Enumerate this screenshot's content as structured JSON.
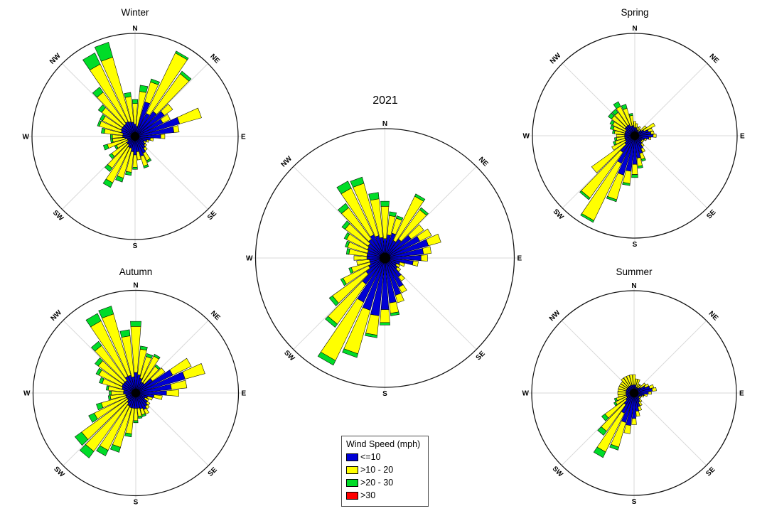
{
  "colors": {
    "blue": "#0000D5",
    "yellow": "#FFFF00",
    "green": "#00DC28",
    "red": "#FF0000",
    "grid": "#d9d9d9",
    "outline": "#111111"
  },
  "compass_labels": [
    "N",
    "NE",
    "E",
    "SE",
    "S",
    "SW",
    "W",
    "NW"
  ],
  "legend": {
    "title": "Wind Speed (mph)",
    "items": [
      {
        "label": "<=10",
        "color": "#0000D5"
      },
      {
        "label": ">10 - 20",
        "color": "#FFFF00"
      },
      {
        "label": ">20 - 30",
        "color": "#00DC28"
      },
      {
        "label": ">30",
        "color": "#FF0000"
      }
    ]
  },
  "wind_directions_deg": [
    0,
    10,
    20,
    30,
    40,
    50,
    60,
    70,
    80,
    90,
    100,
    110,
    120,
    130,
    140,
    150,
    160,
    170,
    180,
    190,
    200,
    210,
    220,
    230,
    240,
    250,
    260,
    270,
    280,
    290,
    300,
    310,
    320,
    330,
    340,
    350
  ],
  "value_scale": "percent of outer circle radius (radial axis unlabeled in figure)",
  "chart_data": [
    {
      "type": "windrose",
      "title": "Winter",
      "position": "top-left",
      "series": [
        {
          "name": "<=10",
          "color": "#0000D5",
          "values": [
            12,
            10,
            35,
            25,
            30,
            35,
            30,
            45,
            38,
            25,
            15,
            12,
            10,
            12,
            14,
            18,
            20,
            15,
            18,
            15,
            12,
            12,
            10,
            10,
            8,
            8,
            10,
            12,
            12,
            14,
            15,
            15,
            15,
            16,
            15,
            14
          ]
        },
        {
          "name": ">10 - 20",
          "color": "#FFFF00",
          "values": [
            20,
            34,
            20,
            65,
            45,
            10,
            8,
            22,
            5,
            4,
            3,
            2,
            2,
            2,
            3,
            8,
            10,
            8,
            12,
            20,
            30,
            38,
            28,
            18,
            12,
            20,
            12,
            10,
            18,
            22,
            20,
            25,
            38,
            62,
            65,
            25
          ]
        },
        {
          "name": ">20 - 30",
          "color": "#00DC28",
          "values": [
            4,
            6,
            3,
            2,
            3,
            0,
            0,
            0,
            0,
            0,
            0,
            0,
            0,
            0,
            0,
            2,
            2,
            0,
            2,
            3,
            4,
            5,
            4,
            3,
            2,
            4,
            2,
            2,
            3,
            2,
            3,
            4,
            6,
            12,
            15,
            4
          ]
        },
        {
          "name": ">30",
          "color": "#FF0000",
          "values": [
            0,
            0,
            0,
            0,
            0,
            0,
            0,
            0,
            0,
            0,
            0,
            0,
            0,
            0,
            0,
            0,
            0,
            0,
            0,
            0,
            0,
            0,
            0,
            0,
            0,
            0,
            0,
            0,
            0,
            0,
            0,
            0,
            0,
            0,
            0,
            0
          ]
        }
      ]
    },
    {
      "type": "windrose",
      "title": "Spring",
      "position": "top-right",
      "series": [
        {
          "name": "<=10",
          "color": "#0000D5",
          "values": [
            8,
            8,
            6,
            6,
            5,
            8,
            10,
            14,
            16,
            18,
            14,
            10,
            8,
            8,
            10,
            14,
            18,
            22,
            28,
            35,
            40,
            30,
            20,
            12,
            10,
            10,
            10,
            10,
            10,
            10,
            10,
            12,
            12,
            12,
            10,
            10
          ]
        },
        {
          "name": ">10 - 20",
          "color": "#FFFF00",
          "values": [
            6,
            4,
            3,
            4,
            3,
            6,
            12,
            4,
            3,
            3,
            2,
            2,
            2,
            2,
            3,
            4,
            6,
            8,
            10,
            12,
            25,
            62,
            55,
            40,
            15,
            10,
            8,
            8,
            10,
            12,
            14,
            16,
            16,
            20,
            18,
            10
          ]
        },
        {
          "name": ">20 - 30",
          "color": "#00DC28",
          "values": [
            0,
            0,
            0,
            0,
            0,
            0,
            0,
            0,
            0,
            0,
            0,
            0,
            0,
            0,
            0,
            0,
            2,
            2,
            3,
            2,
            2,
            2,
            2,
            0,
            0,
            2,
            2,
            0,
            2,
            3,
            3,
            4,
            4,
            5,
            4,
            2
          ]
        },
        {
          "name": ">30",
          "color": "#FF0000",
          "values": [
            0,
            0,
            0,
            0,
            0,
            0,
            0,
            0,
            0,
            0,
            0,
            0,
            0,
            0,
            0,
            0,
            0,
            0,
            0,
            0,
            0,
            0,
            0,
            0,
            0,
            0,
            0,
            0,
            0,
            0,
            0,
            0,
            0,
            0,
            0,
            0
          ]
        }
      ]
    },
    {
      "type": "windrose",
      "title": "2021",
      "position": "center",
      "series": [
        {
          "name": "<=10",
          "color": "#0000D5",
          "values": [
            15,
            18,
            20,
            15,
            18,
            25,
            30,
            35,
            30,
            28,
            22,
            12,
            10,
            12,
            18,
            25,
            30,
            35,
            40,
            45,
            42,
            38,
            25,
            18,
            14,
            12,
            12,
            14,
            14,
            14,
            15,
            16,
            18,
            20,
            18,
            16
          ]
        },
        {
          "name": ">10 - 20",
          "color": "#FFFF00",
          "values": [
            25,
            15,
            12,
            38,
            28,
            12,
            10,
            10,
            6,
            5,
            4,
            4,
            3,
            3,
            4,
            5,
            6,
            8,
            10,
            15,
            35,
            50,
            38,
            32,
            22,
            15,
            10,
            10,
            14,
            16,
            18,
            22,
            30,
            40,
            42,
            30
          ]
        },
        {
          "name": ">20 - 30",
          "color": "#00DC28",
          "values": [
            4,
            3,
            2,
            2,
            2,
            0,
            0,
            0,
            0,
            0,
            0,
            0,
            0,
            0,
            0,
            0,
            0,
            2,
            2,
            2,
            3,
            4,
            3,
            3,
            2,
            2,
            0,
            0,
            2,
            2,
            2,
            3,
            4,
            6,
            5,
            5
          ]
        },
        {
          "name": ">30",
          "color": "#FF0000",
          "values": [
            0,
            0,
            0,
            0,
            0,
            0,
            0,
            0,
            0,
            0,
            0,
            0,
            0,
            0,
            0,
            0,
            0,
            0,
            0,
            0,
            0,
            0,
            0,
            0,
            0,
            0,
            0,
            0,
            0,
            0,
            0,
            0,
            0,
            0,
            0,
            0
          ]
        }
      ]
    },
    {
      "type": "windrose",
      "title": "Autumn",
      "position": "bottom-left",
      "series": [
        {
          "name": "<=10",
          "color": "#0000D5",
          "values": [
            20,
            18,
            15,
            12,
            12,
            20,
            40,
            50,
            35,
            30,
            18,
            12,
            10,
            14,
            16,
            18,
            16,
            15,
            15,
            15,
            15,
            14,
            12,
            10,
            10,
            10,
            10,
            12,
            12,
            14,
            15,
            15,
            15,
            18,
            18,
            16
          ]
        },
        {
          "name": ">10 - 20",
          "color": "#FFFF00",
          "values": [
            45,
            25,
            22,
            28,
            20,
            15,
            20,
            20,
            15,
            12,
            8,
            5,
            4,
            3,
            3,
            5,
            6,
            8,
            12,
            25,
            40,
            48,
            58,
            55,
            35,
            25,
            15,
            12,
            15,
            20,
            25,
            30,
            42,
            60,
            62,
            40
          ]
        },
        {
          "name": ">20 - 30",
          "color": "#00DC28",
          "values": [
            5,
            3,
            3,
            2,
            2,
            0,
            0,
            0,
            0,
            0,
            0,
            0,
            0,
            0,
            0,
            0,
            2,
            2,
            2,
            3,
            5,
            6,
            8,
            8,
            6,
            5,
            2,
            2,
            2,
            3,
            3,
            4,
            5,
            8,
            8,
            6
          ]
        },
        {
          "name": ">30",
          "color": "#FF0000",
          "values": [
            0,
            0,
            0,
            0,
            0,
            0,
            0,
            0,
            0,
            0,
            0,
            0,
            0,
            0,
            0,
            0,
            0,
            0,
            0,
            0,
            0,
            0,
            0,
            0,
            0,
            0,
            0,
            0,
            0,
            0,
            0,
            0,
            0,
            0,
            0,
            0
          ]
        }
      ]
    },
    {
      "type": "windrose",
      "title": "Summer",
      "position": "bottom-right",
      "series": [
        {
          "name": "<=10",
          "color": "#0000D5",
          "values": [
            8,
            8,
            6,
            6,
            6,
            8,
            12,
            16,
            18,
            14,
            10,
            8,
            6,
            6,
            8,
            10,
            14,
            18,
            25,
            32,
            30,
            22,
            14,
            10,
            8,
            8,
            8,
            8,
            8,
            8,
            8,
            8,
            8,
            8,
            8,
            8
          ]
        },
        {
          "name": ">10 - 20",
          "color": "#FFFF00",
          "values": [
            10,
            6,
            8,
            4,
            4,
            6,
            4,
            4,
            4,
            3,
            3,
            2,
            2,
            2,
            3,
            4,
            4,
            5,
            6,
            8,
            25,
            42,
            32,
            25,
            12,
            10,
            8,
            8,
            8,
            8,
            8,
            8,
            10,
            10,
            10,
            10
          ]
        },
        {
          "name": ">20 - 30",
          "color": "#00DC28",
          "values": [
            0,
            0,
            0,
            0,
            0,
            0,
            0,
            0,
            0,
            0,
            0,
            0,
            0,
            0,
            0,
            0,
            0,
            0,
            0,
            0,
            3,
            6,
            5,
            4,
            2,
            2,
            0,
            0,
            0,
            0,
            0,
            0,
            0,
            0,
            0,
            0
          ]
        },
        {
          "name": ">30",
          "color": "#FF0000",
          "values": [
            0,
            0,
            0,
            0,
            0,
            0,
            0,
            0,
            0,
            0,
            0,
            0,
            0,
            0,
            0,
            0,
            0,
            0,
            0,
            0,
            0,
            0,
            0,
            0,
            0,
            0,
            0,
            0,
            0,
            0,
            0,
            0,
            0,
            0,
            0,
            0
          ]
        }
      ]
    }
  ]
}
